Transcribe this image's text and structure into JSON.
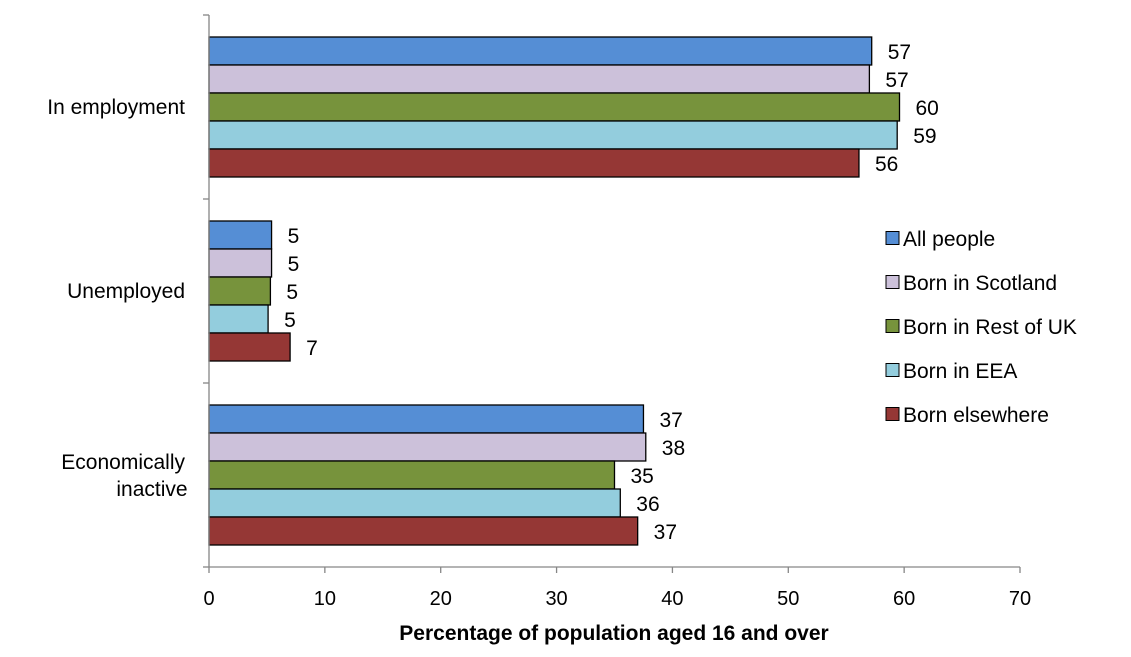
{
  "chart_data": {
    "type": "bar",
    "orientation": "horizontal",
    "categories": [
      "In employment",
      "Unemployed",
      "Economically inactive"
    ],
    "series": [
      {
        "name": "All people",
        "color": "#558ed5",
        "values": [
          57.2,
          5.4,
          37.5
        ]
      },
      {
        "name": "Born in Scotland",
        "color": "#ccc1da",
        "values": [
          57.0,
          5.4,
          37.7
        ]
      },
      {
        "name": "Born in Rest of UK",
        "color": "#77933c",
        "values": [
          59.6,
          5.3,
          35.0
        ]
      },
      {
        "name": "Born in EEA",
        "color": "#93cddd",
        "values": [
          59.4,
          5.1,
          35.5
        ]
      },
      {
        "name": "Born elsewhere",
        "color": "#953735",
        "values": [
          56.1,
          7.0,
          37.0
        ]
      }
    ],
    "data_labels": [
      [
        "57",
        "5",
        "37"
      ],
      [
        "57",
        "5",
        "38"
      ],
      [
        "60",
        "5",
        "35"
      ],
      [
        "59",
        "5",
        "36"
      ],
      [
        "56",
        "7",
        "37"
      ]
    ],
    "xlabel": "Percentage of population aged 16 and over",
    "ylabel": "",
    "xlim": [
      0,
      70
    ],
    "xticks": [
      0,
      10,
      20,
      30,
      40,
      50,
      60,
      70
    ],
    "grid": false,
    "legend_position": "right"
  }
}
